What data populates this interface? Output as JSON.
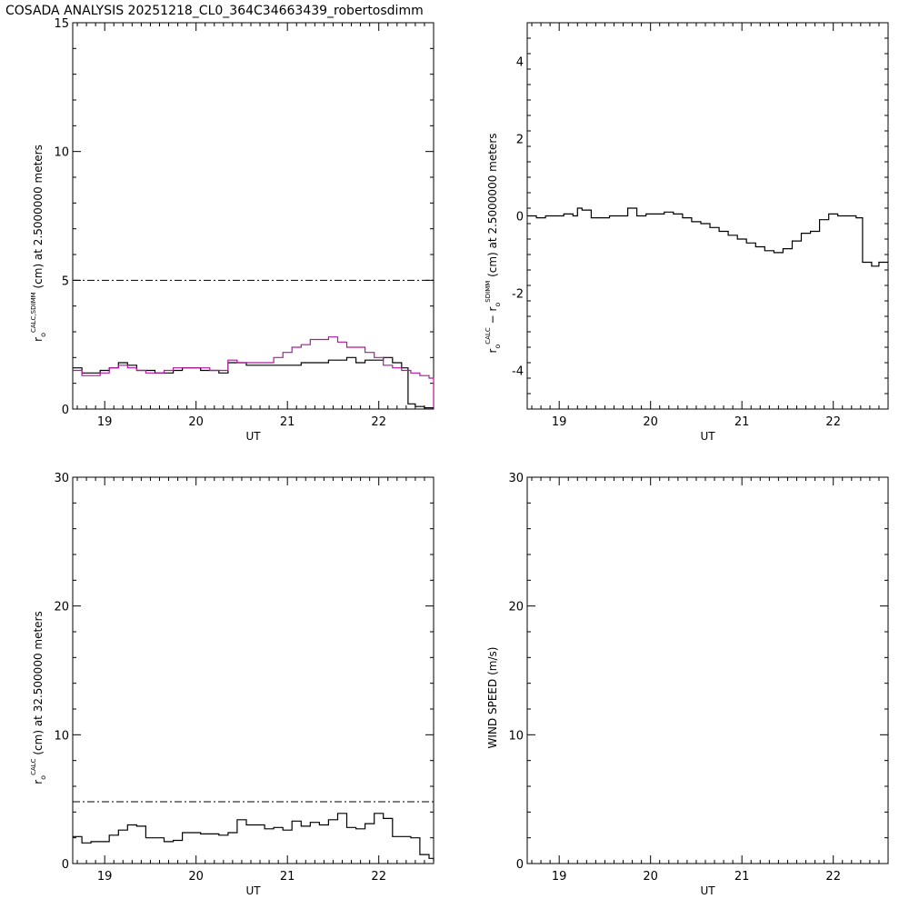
{
  "page_title": "COSADA ANALYSIS 20251218_CL0_364C34663439_robertosdimm",
  "colors": {
    "axes": "#000000",
    "series_calc": "#000000",
    "series_sdimm": "#b0169e"
  },
  "chart_data": [
    {
      "id": "top-left",
      "type": "line",
      "xlabel": "UT",
      "ylabel": {
        "pre": "r",
        "sub": "o",
        "sup": "CALC,SDIMM",
        "post": " (cm)  at  2.5000000 meters"
      },
      "xlim": [
        18.65,
        22.6
      ],
      "ylim": [
        0,
        15
      ],
      "xticks": [
        19,
        20,
        21,
        22
      ],
      "yticks": [
        0,
        5,
        10,
        15
      ],
      "hline": 5,
      "series": [
        {
          "color": "#000000",
          "x": [
            18.65,
            18.75,
            18.85,
            18.95,
            19.05,
            19.15,
            19.25,
            19.35,
            19.45,
            19.55,
            19.65,
            19.75,
            19.85,
            19.95,
            20.05,
            20.15,
            20.25,
            20.35,
            20.45,
            20.55,
            20.65,
            20.75,
            20.85,
            20.95,
            21.05,
            21.15,
            21.25,
            21.35,
            21.45,
            21.55,
            21.65,
            21.75,
            21.85,
            21.95,
            22.05,
            22.15,
            22.25,
            22.32,
            22.4,
            22.5,
            22.6
          ],
          "y": [
            1.6,
            1.4,
            1.4,
            1.5,
            1.6,
            1.8,
            1.7,
            1.5,
            1.5,
            1.4,
            1.4,
            1.5,
            1.6,
            1.6,
            1.5,
            1.5,
            1.4,
            1.8,
            1.8,
            1.7,
            1.7,
            1.7,
            1.7,
            1.7,
            1.7,
            1.8,
            1.8,
            1.8,
            1.9,
            1.9,
            2.0,
            1.8,
            1.9,
            1.9,
            2.0,
            1.8,
            1.6,
            0.2,
            0.1,
            0.05,
            0.05
          ]
        },
        {
          "color": "#b0169e",
          "x": [
            18.65,
            18.75,
            18.85,
            18.95,
            19.05,
            19.15,
            19.25,
            19.35,
            19.45,
            19.55,
            19.65,
            19.75,
            19.85,
            19.95,
            20.05,
            20.15,
            20.25,
            20.35,
            20.45,
            20.55,
            20.65,
            20.75,
            20.85,
            20.95,
            21.05,
            21.15,
            21.25,
            21.35,
            21.45,
            21.55,
            21.65,
            21.75,
            21.85,
            21.95,
            22.05,
            22.15,
            22.25,
            22.35,
            22.45,
            22.55,
            22.6
          ],
          "y": [
            1.5,
            1.3,
            1.3,
            1.4,
            1.6,
            1.7,
            1.6,
            1.5,
            1.4,
            1.4,
            1.5,
            1.6,
            1.6,
            1.6,
            1.6,
            1.5,
            1.5,
            1.9,
            1.8,
            1.8,
            1.8,
            1.8,
            2.0,
            2.2,
            2.4,
            2.5,
            2.7,
            2.7,
            2.8,
            2.6,
            2.4,
            2.4,
            2.2,
            2.0,
            1.7,
            1.6,
            1.5,
            1.4,
            1.3,
            1.2,
            0.05
          ]
        }
      ]
    },
    {
      "id": "top-right",
      "type": "line",
      "xlabel": "UT",
      "ylabel": {
        "pre": "r",
        "sub": "o",
        "sup": "CALC",
        "mid": "  −  r",
        "sub2": "o",
        "sup2": "SDIMM",
        "post": " (cm)  at  2.5000000 meters"
      },
      "xlim": [
        18.65,
        22.6
      ],
      "ylim": [
        -5,
        5
      ],
      "xticks": [
        19,
        20,
        21,
        22
      ],
      "yticks": [
        -4,
        -2,
        0,
        2,
        4
      ],
      "series": [
        {
          "color": "#000000",
          "x": [
            18.65,
            18.75,
            18.85,
            18.95,
            19.05,
            19.15,
            19.2,
            19.25,
            19.35,
            19.45,
            19.55,
            19.65,
            19.75,
            19.85,
            19.95,
            20.05,
            20.15,
            20.25,
            20.35,
            20.45,
            20.55,
            20.65,
            20.75,
            20.85,
            20.95,
            21.05,
            21.15,
            21.25,
            21.35,
            21.45,
            21.55,
            21.65,
            21.75,
            21.85,
            21.95,
            22.05,
            22.15,
            22.25,
            22.32,
            22.42,
            22.5,
            22.6
          ],
          "y": [
            0.0,
            -0.05,
            0.0,
            0.0,
            0.05,
            0.0,
            0.2,
            0.15,
            -0.05,
            -0.05,
            0.0,
            0.0,
            0.2,
            0.0,
            0.05,
            0.05,
            0.1,
            0.05,
            -0.05,
            -0.15,
            -0.2,
            -0.3,
            -0.4,
            -0.5,
            -0.6,
            -0.7,
            -0.8,
            -0.9,
            -0.95,
            -0.85,
            -0.65,
            -0.45,
            -0.4,
            -0.1,
            0.05,
            0.0,
            0.0,
            -0.05,
            -1.2,
            -1.3,
            -1.2,
            -1.2
          ]
        }
      ]
    },
    {
      "id": "bottom-left",
      "type": "line",
      "xlabel": "UT",
      "ylabel": {
        "pre": "r",
        "sub": "o",
        "sup": "CALC",
        "post": " (cm)  at  32.500000 meters"
      },
      "xlim": [
        18.65,
        22.6
      ],
      "ylim": [
        0,
        30
      ],
      "xticks": [
        19,
        20,
        21,
        22
      ],
      "yticks": [
        0,
        10,
        20,
        30
      ],
      "hline": 4.8,
      "series": [
        {
          "color": "#000000",
          "x": [
            18.65,
            18.75,
            18.85,
            18.95,
            19.05,
            19.15,
            19.25,
            19.35,
            19.45,
            19.55,
            19.65,
            19.75,
            19.85,
            19.95,
            20.05,
            20.15,
            20.25,
            20.35,
            20.45,
            20.55,
            20.65,
            20.75,
            20.85,
            20.95,
            21.05,
            21.15,
            21.25,
            21.35,
            21.45,
            21.55,
            21.65,
            21.75,
            21.85,
            21.95,
            22.05,
            22.15,
            22.25,
            22.35,
            22.45,
            22.55,
            22.6
          ],
          "y": [
            2.1,
            1.6,
            1.7,
            1.7,
            2.2,
            2.6,
            3.0,
            2.9,
            2.0,
            2.0,
            1.7,
            1.8,
            2.4,
            2.4,
            2.3,
            2.3,
            2.2,
            2.4,
            3.4,
            3.0,
            3.0,
            2.7,
            2.8,
            2.6,
            3.3,
            2.9,
            3.2,
            3.0,
            3.4,
            3.9,
            2.8,
            2.7,
            3.1,
            3.9,
            3.5,
            2.1,
            2.1,
            2.0,
            0.7,
            0.4,
            0.2
          ]
        }
      ]
    },
    {
      "id": "bottom-right",
      "type": "line",
      "xlabel": "UT",
      "ylabel": {
        "pre": "WIND SPEED (m/s)"
      },
      "xlim": [
        18.65,
        22.6
      ],
      "ylim": [
        0,
        30
      ],
      "xticks": [
        19,
        20,
        21,
        22
      ],
      "yticks": [
        0,
        10,
        20,
        30
      ],
      "series": []
    }
  ]
}
